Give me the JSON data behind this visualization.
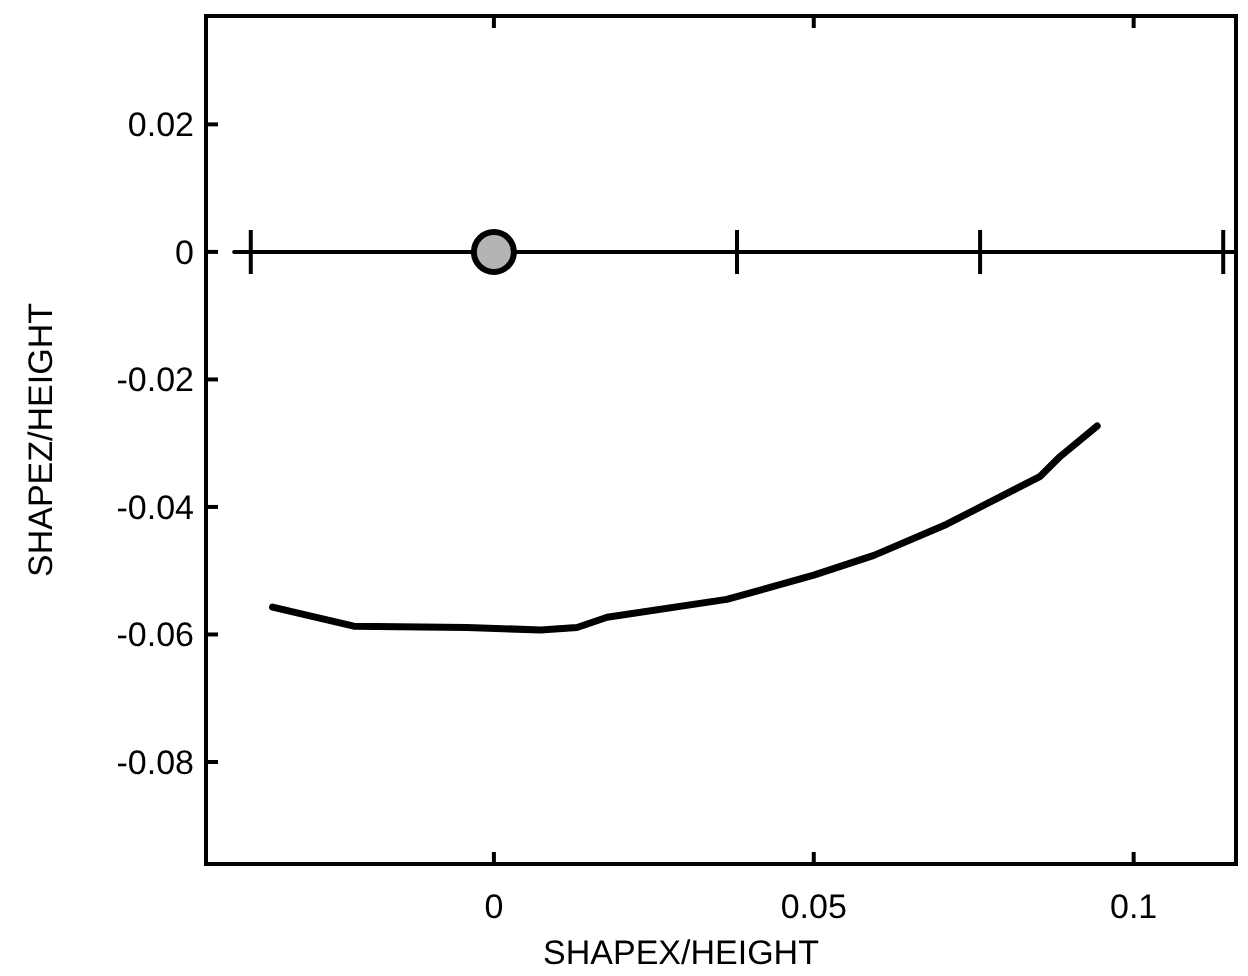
{
  "chart_data": {
    "type": "line",
    "xlabel": "SHAPEX/HEIGHT",
    "ylabel": "SHAPEZ/HEIGHT",
    "xlim": [
      -0.045,
      0.116
    ],
    "xticks": [
      0,
      0.05,
      0.1
    ],
    "ylim": [
      -0.096,
      0.037
    ],
    "yticks": [
      -0.08,
      -0.06,
      -0.04,
      -0.02,
      0,
      0.02
    ],
    "grid": false,
    "line_style": "solid",
    "series": [
      {
        "color": "#000000",
        "marker": "none",
        "x": [
          -0.0406,
          0.116
        ],
        "values": [
          0,
          0
        ]
      },
      {
        "type": "scatter",
        "color": "#000000",
        "marker": "cross",
        "x": [
          -0.038,
          0.038,
          0.076,
          0.114
        ],
        "values": [
          0,
          0,
          0,
          0
        ]
      },
      {
        "color": "#000000",
        "marker": "none",
        "x": [
          -0.0346,
          -0.0219,
          -0.0042,
          0.0073,
          0.013,
          0.0177,
          0.0364,
          0.05,
          0.0594,
          0.0708,
          0.0854,
          0.0885,
          0.0943
        ],
        "values": [
          -0.0557,
          -0.0587,
          -0.0589,
          -0.0593,
          -0.0589,
          -0.0573,
          -0.0545,
          -0.0507,
          -0.0476,
          -0.0427,
          -0.0352,
          -0.0321,
          -0.0273
        ]
      },
      {
        "type": "scatter",
        "color": "#b4b4b4",
        "marker": "circle",
        "x": [
          0
        ],
        "values": [
          0
        ]
      }
    ]
  }
}
